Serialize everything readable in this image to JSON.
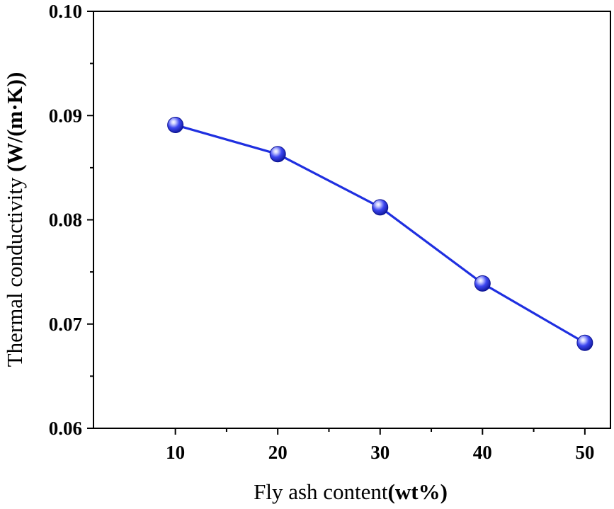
{
  "chart_data": {
    "type": "line",
    "title": "",
    "xlabel": "Fly ash content",
    "xlabel_unit": "(wt%)",
    "ylabel": "Thermal conductivity ",
    "ylabel_unit": "(W/(m·K))",
    "xlim": [
      2,
      52.5
    ],
    "ylim": [
      0.06,
      0.1
    ],
    "x_ticks": [
      10,
      20,
      30,
      40,
      50
    ],
    "x_tick_labels": [
      "10",
      "20",
      "30",
      "40",
      "50"
    ],
    "y_ticks": [
      0.06,
      0.07,
      0.08,
      0.09,
      0.1
    ],
    "y_tick_labels": [
      "0.06",
      "0.07",
      "0.08",
      "0.09",
      "0.10"
    ],
    "grid": false,
    "legend": "none",
    "series": [
      {
        "color": "#1f2fe0",
        "x": [
          10,
          20,
          30,
          40,
          50
        ],
        "y": [
          0.0891,
          0.0863,
          0.0812,
          0.0739,
          0.0682
        ]
      }
    ]
  }
}
